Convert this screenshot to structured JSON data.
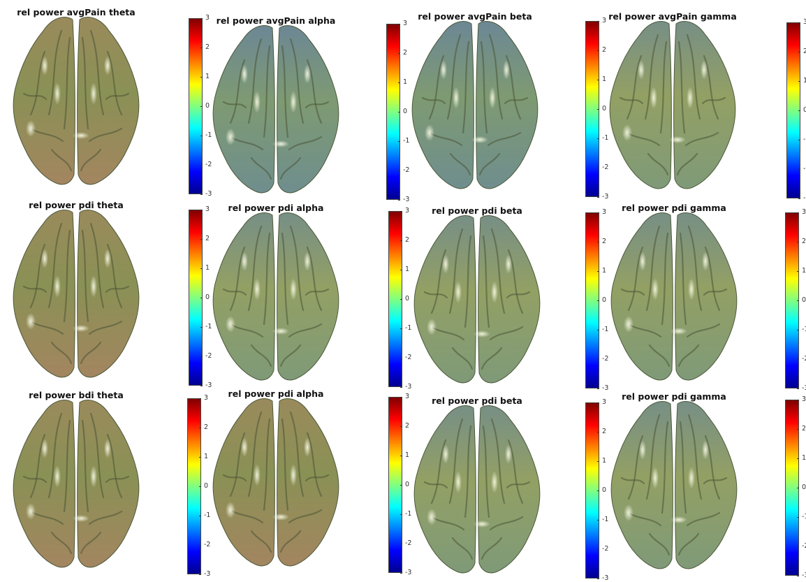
{
  "panels": [
    {
      "title": "rel power avgPain theta"
    },
    {
      "title": "rel power avgPain alpha"
    },
    {
      "title": "rel power avgPain beta"
    },
    {
      "title": "rel power avgPain gamma"
    },
    {
      "title": "rel power pdi theta"
    },
    {
      "title": "rel power pdi alpha"
    },
    {
      "title": "rel power pdi beta"
    },
    {
      "title": "rel power pdi gamma"
    },
    {
      "title": "rel power bdi theta"
    },
    {
      "title": "rel power pdi alpha"
    },
    {
      "title": "rel power pdi beta"
    },
    {
      "title": "rel power pdi gamma"
    }
  ],
  "colorbar": {
    "ticks": [
      "3",
      "2",
      "1",
      "0",
      "-1",
      "-2",
      "-3"
    ],
    "range": [
      -3,
      3
    ],
    "colormap": "jet"
  },
  "colors": {
    "brain_base": "#8a9a5a",
    "brain_highlight": "#f4f6e0",
    "brain_cool": "#6f8f9a",
    "brain_warm": "#9a6b5a"
  }
}
